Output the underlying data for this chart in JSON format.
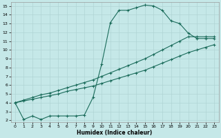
{
  "xlabel": "Humidex (Indice chaleur)",
  "bg_color": "#c5e8e8",
  "grid_color": "#b0d4d4",
  "line_color": "#1a6b5a",
  "xlim_min": -0.5,
  "xlim_max": 23.5,
  "ylim_min": 1.8,
  "ylim_max": 15.4,
  "xticks": [
    0,
    1,
    2,
    3,
    4,
    5,
    6,
    7,
    8,
    9,
    10,
    11,
    12,
    13,
    14,
    15,
    16,
    17,
    18,
    19,
    20,
    21,
    22,
    23
  ],
  "yticks": [
    2,
    3,
    4,
    5,
    6,
    7,
    8,
    9,
    10,
    11,
    12,
    13,
    14,
    15
  ],
  "curve1_x": [
    0,
    1,
    2,
    3,
    4,
    5,
    6,
    7,
    8,
    9,
    10,
    11,
    12,
    13,
    14,
    15,
    16,
    17,
    18,
    19,
    20,
    21,
    22,
    23
  ],
  "curve1_y": [
    4.0,
    2.1,
    2.5,
    2.1,
    2.5,
    2.5,
    2.5,
    2.5,
    2.6,
    4.6,
    8.4,
    13.1,
    14.5,
    14.5,
    14.8,
    15.1,
    15.0,
    14.5,
    13.3,
    13.0,
    11.9,
    11.3,
    11.3,
    11.3
  ],
  "curve2_x": [
    0,
    1,
    2,
    3,
    4,
    5,
    6,
    7,
    8,
    9,
    10,
    11,
    12,
    13,
    14,
    15,
    16,
    17,
    18,
    19,
    20,
    21,
    22,
    23
  ],
  "curve2_y": [
    4.0,
    4.3,
    4.6,
    4.9,
    5.1,
    5.4,
    5.7,
    6.0,
    6.3,
    6.6,
    7.0,
    7.4,
    7.8,
    8.2,
    8.6,
    9.0,
    9.5,
    10.0,
    10.5,
    11.0,
    11.5,
    11.5,
    11.5,
    11.5
  ],
  "curve3_x": [
    0,
    1,
    2,
    3,
    4,
    5,
    6,
    7,
    8,
    9,
    10,
    11,
    12,
    13,
    14,
    15,
    16,
    17,
    18,
    19,
    20,
    21,
    22,
    23
  ],
  "curve3_y": [
    4.0,
    4.2,
    4.4,
    4.6,
    4.8,
    5.0,
    5.3,
    5.5,
    5.7,
    5.9,
    6.2,
    6.5,
    6.8,
    7.1,
    7.4,
    7.7,
    8.1,
    8.5,
    8.9,
    9.3,
    9.7,
    10.0,
    10.3,
    10.6
  ]
}
